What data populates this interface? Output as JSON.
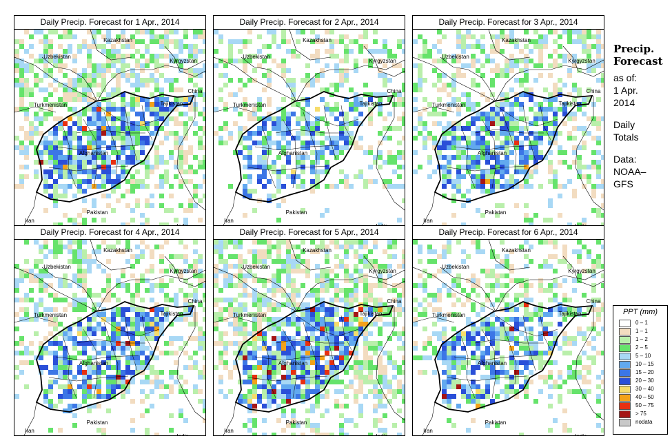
{
  "panels": [
    {
      "title": "Daily Precip. Forecast for  1 Apr., 2014",
      "seed": 11,
      "wet": 0.55,
      "heavy": 0.05
    },
    {
      "title": "Daily Precip. Forecast for  2 Apr., 2014",
      "seed": 23,
      "wet": 0.35,
      "heavy": 0.02
    },
    {
      "title": "Daily Precip. Forecast for  3 Apr., 2014",
      "seed": 37,
      "wet": 0.45,
      "heavy": 0.03
    },
    {
      "title": "Daily Precip. Forecast for  4 Apr., 2014",
      "seed": 41,
      "wet": 0.45,
      "heavy": 0.06
    },
    {
      "title": "Daily Precip. Forecast for  5 Apr., 2014",
      "seed": 59,
      "wet": 0.6,
      "heavy": 0.12
    },
    {
      "title": "Daily Precip. Forecast for  6 Apr., 2014",
      "seed": 73,
      "wet": 0.4,
      "heavy": 0.05
    }
  ],
  "country_labels": [
    "Kazakhstan",
    "Uzbekistan",
    "Kyrgyzstan",
    "China",
    "Turkmenistan",
    "Tajikistan",
    "Afghanistan",
    "Iran",
    "Pakistan",
    "India"
  ],
  "side": {
    "title_line1": "Precip.",
    "title_line2": "Forecast",
    "asof": "as of:",
    "date_line1": "1 Apr.",
    "date_line2": "2014",
    "totals_line1": "Daily",
    "totals_line2": "Totals",
    "data_line1": "Data:",
    "data_line2": "NOAA–",
    "data_line3": "GFS"
  },
  "legend": {
    "title": "PPT (mm)",
    "items": [
      {
        "label": "0 – 1",
        "color": "#ffffff"
      },
      {
        "label": "1 – 1",
        "color": "#f2dcc0"
      },
      {
        "label": "1 – 2",
        "color": "#b9efab"
      },
      {
        "label": "2 – 5",
        "color": "#66e36b"
      },
      {
        "label": "5 – 10",
        "color": "#a8d8f5"
      },
      {
        "label": "10 – 15",
        "color": "#62a9ef"
      },
      {
        "label": "15 – 20",
        "color": "#3c76e6"
      },
      {
        "label": "20 – 30",
        "color": "#2a4fd8"
      },
      {
        "label": "30 – 40",
        "color": "#f6dc6b"
      },
      {
        "label": "40 – 50",
        "color": "#f3a21a"
      },
      {
        "label": "50 – 75",
        "color": "#e83010"
      },
      {
        "label": "> 75",
        "color": "#a51515"
      },
      {
        "label": "nodata",
        "color": "#c8c8c8"
      }
    ]
  }
}
